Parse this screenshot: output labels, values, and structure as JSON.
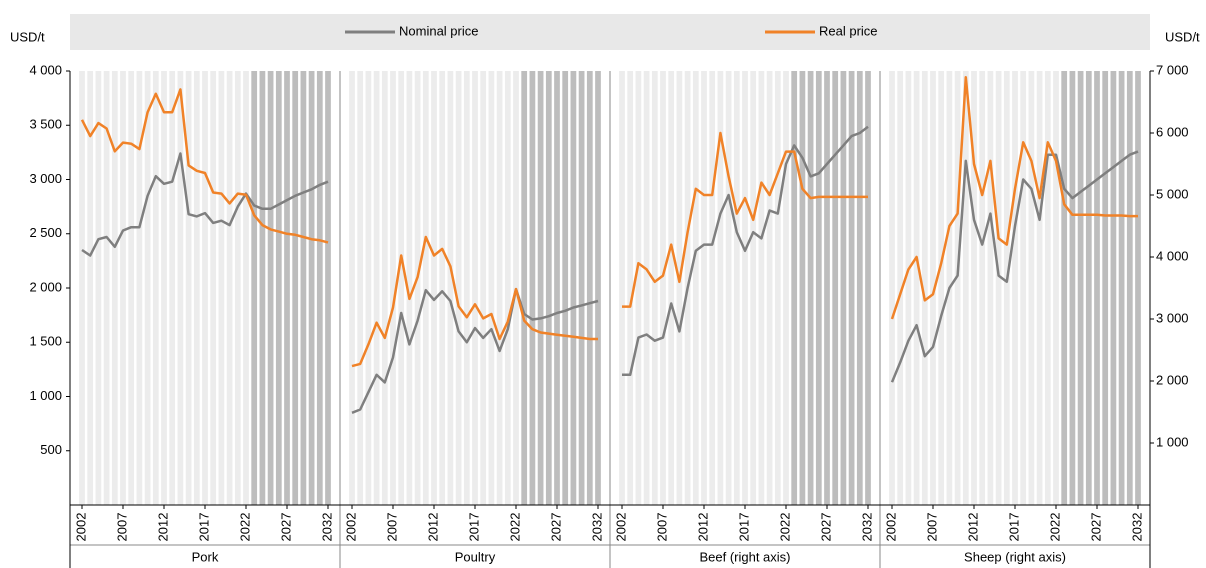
{
  "chart_data": {
    "type": "line",
    "y_label": "USD/t",
    "y2_label": "USD/t",
    "legend": [
      {
        "name": "Nominal price",
        "color": "#7f7f7f"
      },
      {
        "name": "Real price",
        "color": "#f08228"
      }
    ],
    "x": [
      2002,
      2003,
      2004,
      2005,
      2006,
      2007,
      2008,
      2009,
      2010,
      2011,
      2012,
      2013,
      2014,
      2015,
      2016,
      2017,
      2018,
      2019,
      2020,
      2021,
      2022,
      2023,
      2024,
      2025,
      2026,
      2027,
      2028,
      2029,
      2030,
      2031,
      2032
    ],
    "xlim": [
      2002,
      2032
    ],
    "xticks": [
      2002,
      2007,
      2012,
      2017,
      2022,
      2027,
      2032
    ],
    "shaded_xlim": [
      2023,
      2032
    ],
    "ylim": [
      0,
      4000
    ],
    "yticks": [
      500,
      {
        "value": 1000,
        "label": "1 000"
      },
      {
        "value": 1500,
        "label": "1 500"
      },
      {
        "value": 2000,
        "label": "2 000"
      },
      {
        "value": 2500,
        "label": "2 500"
      },
      {
        "value": 3000,
        "label": "3 000"
      },
      {
        "value": 3500,
        "label": "3 500"
      },
      {
        "value": 4000,
        "label": "4 000"
      }
    ],
    "y2lim": [
      0,
      7000
    ],
    "y2ticks": [
      {
        "value": 1000,
        "label": "1 000"
      },
      {
        "value": 2000,
        "label": "2 000"
      },
      {
        "value": 3000,
        "label": "3 000"
      },
      {
        "value": 4000,
        "label": "4 000"
      },
      {
        "value": 5000,
        "label": "5 000"
      },
      {
        "value": 6000,
        "label": "6 000"
      },
      {
        "value": 7000,
        "label": "7 000"
      }
    ],
    "panels": [
      {
        "name": "Pork",
        "series": [
          {
            "values": [
              2350,
              2300,
              2450,
              2470,
              2380,
              2530,
              2560,
              2560,
              2850,
              3030,
              2960,
              2980,
              3240,
              2680,
              2660,
              2690,
              2600,
              2620,
              2580,
              2750,
              2870,
              2760,
              2730,
              2730,
              2770,
              2810,
              2850,
              2880,
              2910,
              2950,
              2980
            ]
          },
          {
            "values": [
              3550,
              3400,
              3520,
              3470,
              3260,
              3340,
              3330,
              3280,
              3620,
              3790,
              3620,
              3620,
              3830,
              3130,
              3080,
              3060,
              2880,
              2870,
              2780,
              2870,
              2860,
              2670,
              2580,
              2540,
              2520,
              2500,
              2490,
              2470,
              2450,
              2440,
              2420
            ]
          }
        ]
      },
      {
        "name": "Poultry",
        "series": [
          {
            "values": [
              850,
              880,
              1040,
              1200,
              1130,
              1360,
              1770,
              1480,
              1700,
              1980,
              1890,
              1970,
              1880,
              1600,
              1500,
              1630,
              1540,
              1620,
              1420,
              1620,
              1990,
              1760,
              1710,
              1720,
              1740,
              1770,
              1790,
              1820,
              1840,
              1860,
              1880
            ]
          },
          {
            "values": [
              1280,
              1300,
              1480,
              1680,
              1540,
              1820,
              2300,
              1900,
              2100,
              2470,
              2300,
              2360,
              2200,
              1830,
              1730,
              1850,
              1720,
              1760,
              1530,
              1690,
              1990,
              1700,
              1620,
              1590,
              1580,
              1570,
              1560,
              1550,
              1540,
              1530,
              1530
            ]
          }
        ]
      },
      {
        "name": "Beef (right axis)",
        "series": [
          {
            "axis": "y2",
            "values": [
              2100,
              2100,
              2700,
              2750,
              2650,
              2700,
              3250,
              2800,
              3500,
              4100,
              4200,
              4200,
              4700,
              5000,
              4400,
              4100,
              4400,
              4300,
              4750,
              4700,
              5500,
              5800,
              5600,
              5300,
              5350,
              5500,
              5650,
              5800,
              5950,
              6000,
              6100
            ]
          },
          {
            "axis": "y2",
            "values": [
              3200,
              3200,
              3900,
              3800,
              3600,
              3700,
              4200,
              3600,
              4400,
              5100,
              5000,
              5000,
              6000,
              5300,
              4700,
              4950,
              4600,
              5200,
              5000,
              5350,
              5700,
              5700,
              5100,
              4950,
              4970,
              4970,
              4970,
              4970,
              4970,
              4970,
              4970
            ]
          }
        ]
      },
      {
        "name": "Sheep (right axis)",
        "series": [
          {
            "axis": "y2",
            "values": [
              1980,
              2300,
              2650,
              2900,
              2400,
              2550,
              3050,
              3500,
              3700,
              5550,
              4600,
              4200,
              4700,
              3700,
              3600,
              4500,
              5250,
              5100,
              4600,
              5650,
              5650,
              5100,
              4950,
              5050,
              5150,
              5250,
              5350,
              5450,
              5550,
              5650,
              5700
            ]
          },
          {
            "axis": "y2",
            "values": [
              3000,
              3400,
              3800,
              4000,
              3300,
              3400,
              3900,
              4500,
              4700,
              6900,
              5500,
              5000,
              5550,
              4300,
              4200,
              5100,
              5850,
              5550,
              4950,
              5850,
              5550,
              4850,
              4680,
              4680,
              4680,
              4680,
              4670,
              4670,
              4670,
              4660,
              4660
            ]
          }
        ]
      }
    ]
  }
}
